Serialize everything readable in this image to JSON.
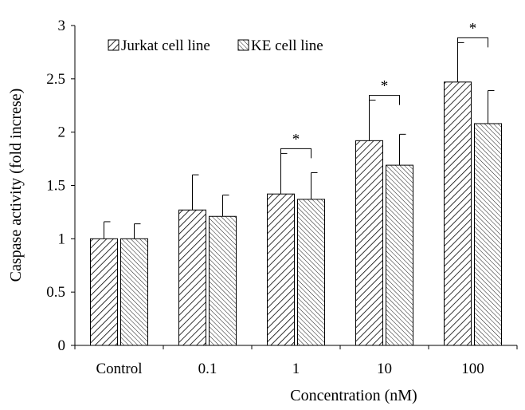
{
  "chart_data": {
    "type": "bar",
    "xlabel": "Concentration (nM)",
    "ylabel": "Caspase activity (fold increse)",
    "categories": [
      "Control",
      "0.1",
      "1",
      "10",
      "100"
    ],
    "ylim": [
      0,
      3
    ],
    "yticks": [
      "0",
      "0.5",
      "1",
      "1.5",
      "2",
      "2.5",
      "3"
    ],
    "series": [
      {
        "name": "Jurkat cell line",
        "values": [
          1.0,
          1.27,
          1.42,
          1.92,
          2.47
        ],
        "errors": [
          0.16,
          0.33,
          0.38,
          0.38,
          0.37
        ],
        "pattern": "diagonal-right"
      },
      {
        "name": "KE cell line",
        "values": [
          1.0,
          1.21,
          1.37,
          1.69,
          2.08
        ],
        "errors": [
          0.14,
          0.2,
          0.25,
          0.29,
          0.31
        ],
        "pattern": "diagonal-left-dense"
      }
    ],
    "significance": [
      {
        "category": "1",
        "label": "*"
      },
      {
        "category": "10",
        "label": "*"
      },
      {
        "category": "100",
        "label": "*"
      }
    ],
    "legend": "top-left",
    "grid": false
  }
}
